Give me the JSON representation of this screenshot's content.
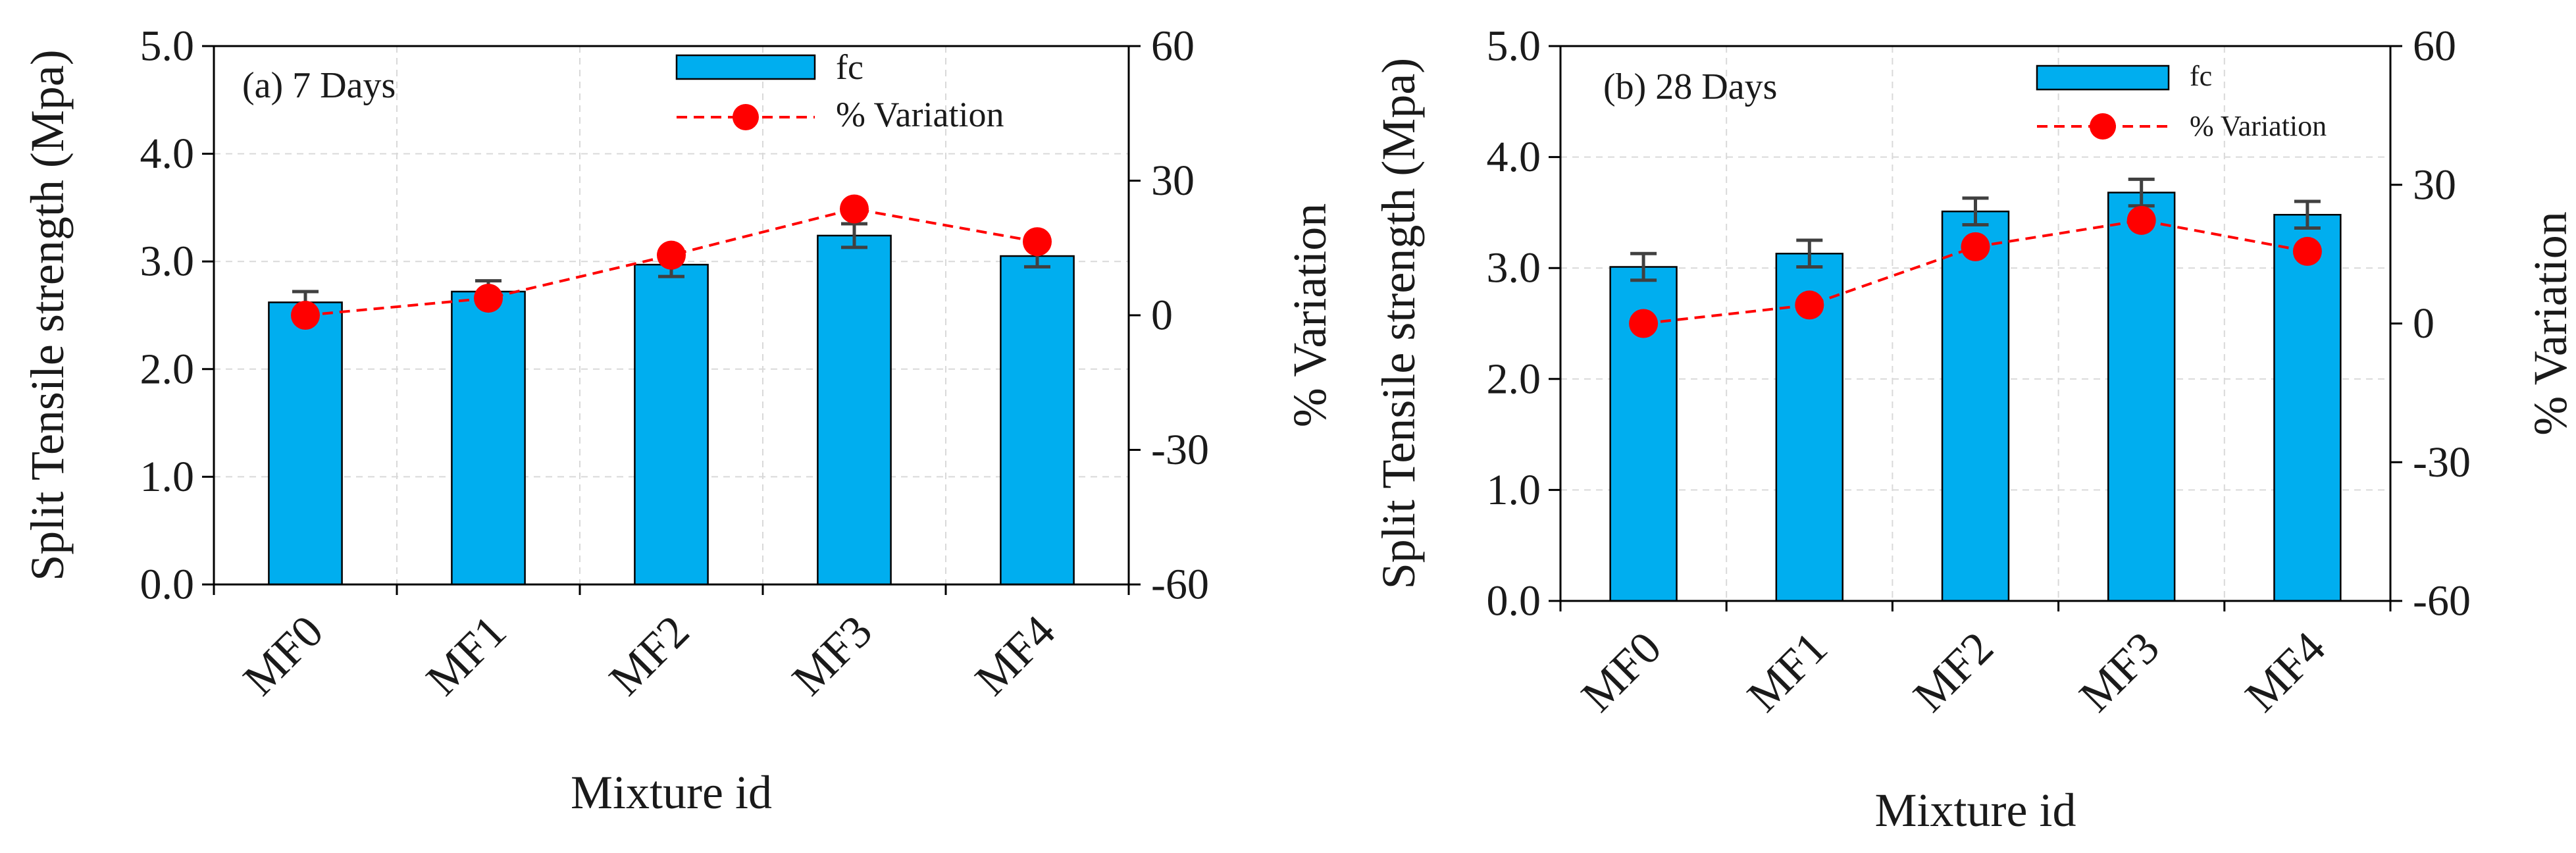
{
  "chart_data": [
    {
      "type": "bar",
      "panel_label": "(a) 7 Days",
      "categories": [
        "MF0",
        "MF1",
        "MF2",
        "MF3",
        "MF4"
      ],
      "xlabel": "Mixture id",
      "ylabel": "Split Tensile strength (Mpa)",
      "ylim": [
        0,
        5
      ],
      "yticks": [
        "0.0",
        "1.0",
        "2.0",
        "3.0",
        "4.0",
        "5.0"
      ],
      "y2label": "% Variation",
      "y2lim": [
        -60,
        60
      ],
      "y2ticks": [
        "-60",
        "-30",
        "0",
        "30",
        "60"
      ],
      "grid": true,
      "legend_position": "top-right",
      "series": [
        {
          "name": "fc",
          "kind": "bar",
          "color": "#00AEEF",
          "values": [
            2.62,
            2.72,
            2.97,
            3.24,
            3.05
          ],
          "errors": [
            0.1,
            0.1,
            0.11,
            0.11,
            0.1
          ]
        },
        {
          "name": "% Variation",
          "kind": "line",
          "axis": "secondary",
          "color": "#FF0000",
          "values": [
            0,
            3.8,
            13.4,
            23.7,
            16.4
          ]
        }
      ]
    },
    {
      "type": "bar",
      "panel_label": "(b) 28 Days",
      "categories": [
        "MF0",
        "MF1",
        "MF2",
        "MF3",
        "MF4"
      ],
      "xlabel": "Mixture id",
      "ylabel": "Split Tensile strength (Mpa)",
      "ylim": [
        0,
        5
      ],
      "yticks": [
        "0.0",
        "1.0",
        "2.0",
        "3.0",
        "4.0",
        "5.0"
      ],
      "y2label": "% Variation",
      "y2lim": [
        -60,
        60
      ],
      "y2ticks": [
        "-60",
        "-30",
        "0",
        "30",
        "60"
      ],
      "grid": true,
      "legend_position": "top-right",
      "series": [
        {
          "name": "fc",
          "kind": "bar",
          "color": "#00AEEF",
          "values": [
            3.01,
            3.13,
            3.51,
            3.68,
            3.48
          ],
          "errors": [
            0.12,
            0.12,
            0.12,
            0.12,
            0.12
          ]
        },
        {
          "name": "% Variation",
          "kind": "line",
          "axis": "secondary",
          "color": "#FF0000",
          "values": [
            0,
            4.0,
            16.6,
            22.3,
            15.6
          ]
        }
      ]
    }
  ]
}
